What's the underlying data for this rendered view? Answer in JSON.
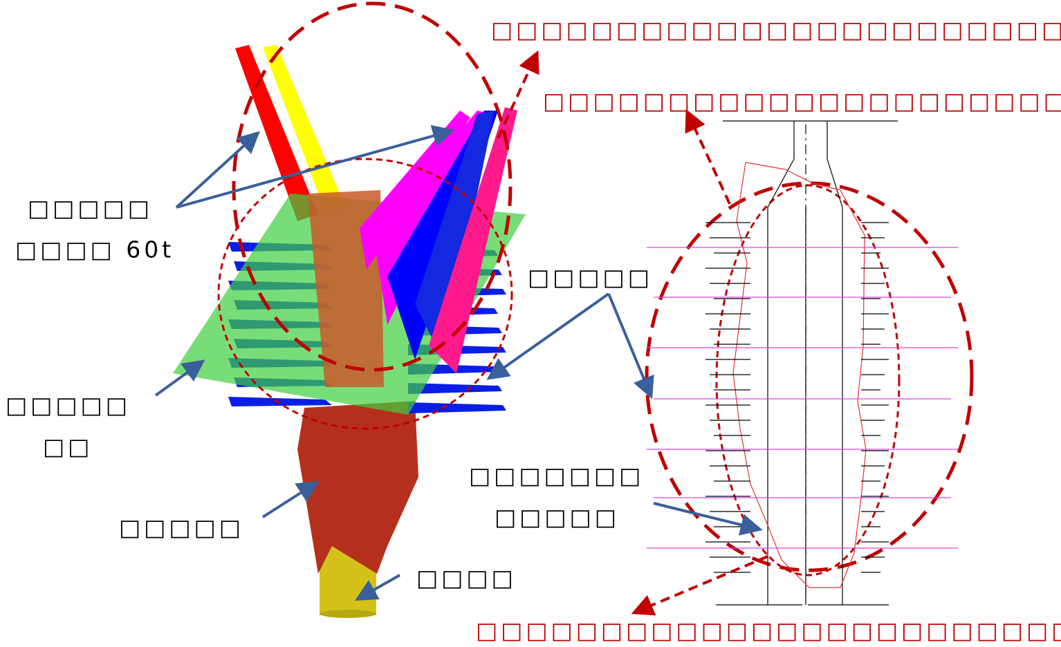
{
  "labels": {
    "top_note": "□□□□□□□□□□□□□□□□□□□□□□□□",
    "mid_note": "□□□□□□□□□□□□□□□□□□□□□□□□□",
    "bottom_note": "□□□□□□□□□□□□□□□□□□□□□□□□□□",
    "crane": [
      "□□□□□",
      "□□□□ 60t"
    ],
    "plane": [
      "□□□□□",
      "□□"
    ],
    "ore_body": "□□□□□",
    "shaft": "□□□□",
    "fan_holes_left": "□□□□□",
    "fan_holes_right": [
      "□□□□□□□",
      "□□□□□"
    ]
  }
}
